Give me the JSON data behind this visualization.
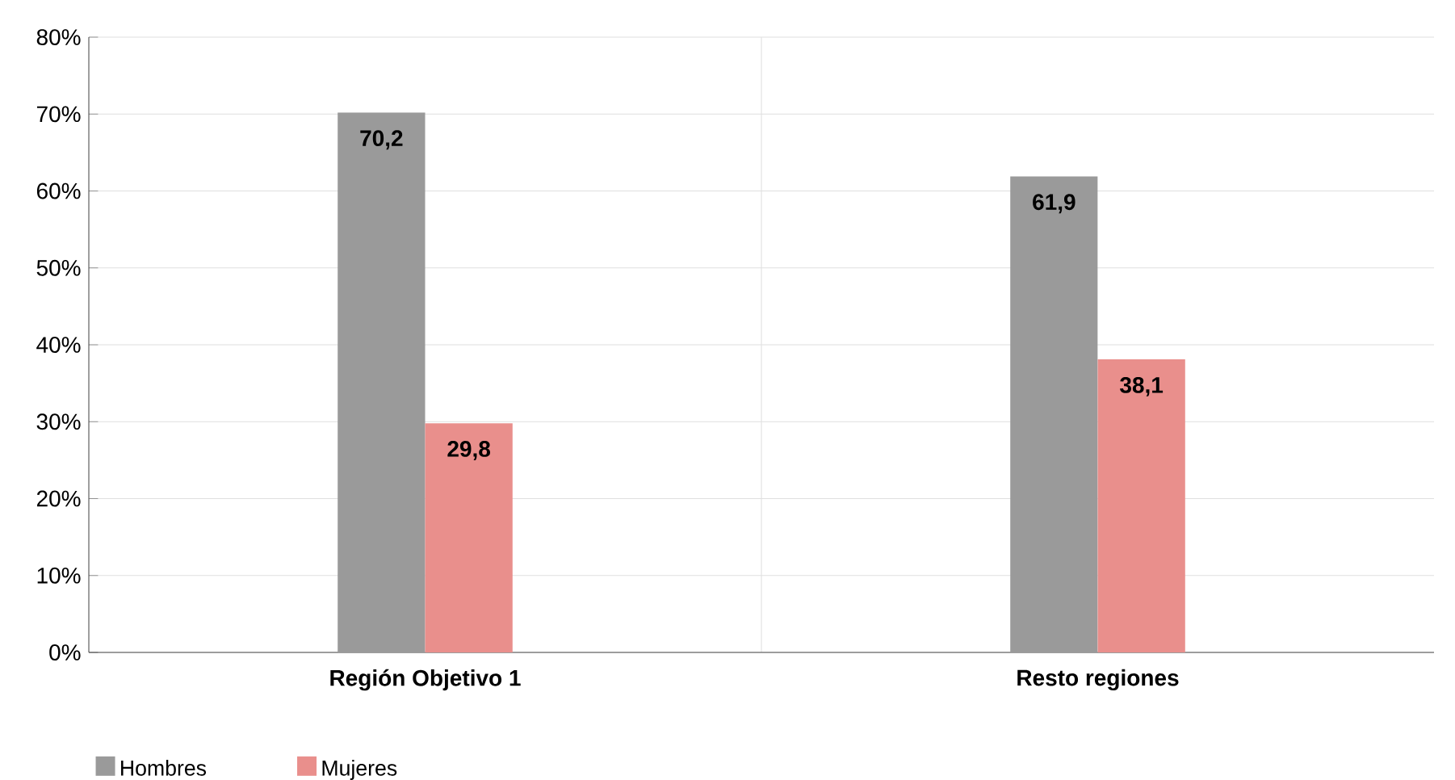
{
  "chart_data": {
    "type": "bar",
    "categories": [
      "Región Objetivo 1",
      "Resto regiones"
    ],
    "series": [
      {
        "name": "Hombres",
        "color": "#9a9a9a",
        "values": [
          70.2,
          61.9
        ],
        "value_labels": [
          "70,2",
          "61,9"
        ]
      },
      {
        "name": "Mujeres",
        "color": "#e98f8c",
        "values": [
          29.8,
          38.1
        ],
        "value_labels": [
          "29,8",
          "38,1"
        ]
      }
    ],
    "ylim": [
      0,
      80
    ],
    "yticks": [
      {
        "value": 0,
        "label": "0%"
      },
      {
        "value": 10,
        "label": "10%"
      },
      {
        "value": 20,
        "label": "20%"
      },
      {
        "value": 30,
        "label": "30%"
      },
      {
        "value": 40,
        "label": "40%"
      },
      {
        "value": 50,
        "label": "50%"
      },
      {
        "value": 60,
        "label": "60%"
      },
      {
        "value": 70,
        "label": "70%"
      },
      {
        "value": 80,
        "label": "80%"
      }
    ],
    "grid": "y",
    "legend": "bottom left"
  }
}
